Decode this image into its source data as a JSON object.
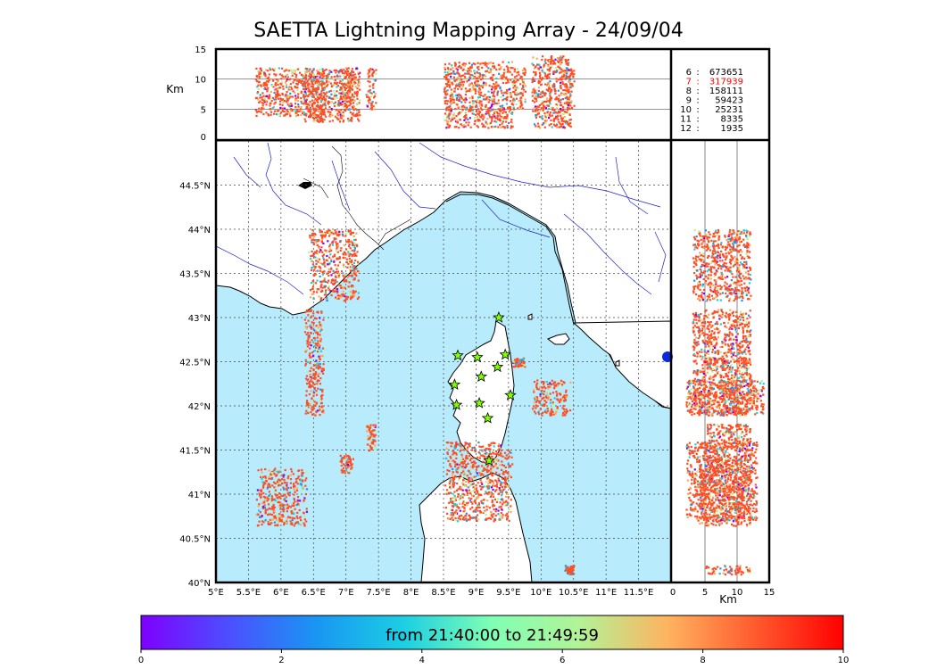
{
  "title": "SAETTA Lightning Mapping Array - 24/09/04",
  "colors": {
    "sea": "#b8ecfc",
    "land": "#ffffff",
    "rivers": "#2020d0",
    "borders": "#000000",
    "star_fill": "#7fff00",
    "highlight_stat": "#ff0000"
  },
  "altitude_panel": {
    "ylabel": "Km",
    "yticks": [
      "0",
      "5",
      "10",
      "15"
    ]
  },
  "side_panel": {
    "xlabel": "Km",
    "xticks": [
      "0",
      "5",
      "10",
      "15"
    ]
  },
  "map": {
    "lon_ticks": [
      "5°E",
      "5.5°E",
      "6°E",
      "6.5°E",
      "7°E",
      "7.5°E",
      "8°E",
      "8.5°E",
      "9°E",
      "9.5°E",
      "10°E",
      "10.5°E",
      "11°E",
      "11.5°E"
    ],
    "lat_ticks": [
      "40°N",
      "40.5°N",
      "41°N",
      "41.5°N",
      "42°N",
      "42.5°N",
      "43°N",
      "43.5°N",
      "44°N",
      "44.5°N"
    ],
    "grid": "dotted",
    "station_marker": "star-icon",
    "stations": [
      {
        "lon": 9.35,
        "lat": 43.0
      },
      {
        "lon": 8.72,
        "lat": 42.57
      },
      {
        "lon": 9.02,
        "lat": 42.55
      },
      {
        "lon": 9.45,
        "lat": 42.58
      },
      {
        "lon": 9.33,
        "lat": 42.44
      },
      {
        "lon": 9.08,
        "lat": 42.33
      },
      {
        "lon": 8.67,
        "lat": 42.24
      },
      {
        "lon": 9.53,
        "lat": 42.12
      },
      {
        "lon": 8.7,
        "lat": 42.01
      },
      {
        "lon": 9.05,
        "lat": 42.03
      },
      {
        "lon": 9.18,
        "lat": 41.86
      },
      {
        "lon": 9.2,
        "lat": 41.38
      }
    ]
  },
  "stats": [
    {
      "stations": "6",
      "sep": ":",
      "count": "673651",
      "highlight": false
    },
    {
      "stations": "7",
      "sep": ":",
      "count": "317939",
      "highlight": true
    },
    {
      "stations": "8",
      "sep": ":",
      "count": "158111",
      "highlight": false
    },
    {
      "stations": "9",
      "sep": ":",
      "count": "59423",
      "highlight": false
    },
    {
      "stations": "10",
      "sep": ":",
      "count": "25231",
      "highlight": false
    },
    {
      "stations": "11",
      "sep": ":",
      "count": "8335",
      "highlight": false
    },
    {
      "stations": "12",
      "sep": ":",
      "count": "1935",
      "highlight": false
    }
  ],
  "colorbar": {
    "label": "from 21:40:00 to 21:49:59",
    "ticks": [
      "0",
      "2",
      "4",
      "6",
      "8",
      "10"
    ],
    "min": 0,
    "max": 10,
    "colormap": "rainbow"
  },
  "chart_data": {
    "type": "scatter",
    "title": "SAETTA Lightning Mapping Array - 24/09/04",
    "xlabel": "",
    "ylabel": "",
    "xlim": [
      5.0,
      12.0
    ],
    "ylim": [
      40.0,
      45.0
    ],
    "altitude_range_km": [
      0,
      15
    ],
    "colorbar_range_minutes": [
      0,
      10
    ],
    "clusters": [
      {
        "lon": [
          6.4,
          7.2
        ],
        "lat": [
          43.2,
          44.0
        ],
        "alt_km": [
          3,
          12
        ],
        "dominant_time_min": 8
      },
      {
        "lon": [
          6.35,
          6.65
        ],
        "lat": [
          41.9,
          43.1
        ],
        "alt_km": [
          3,
          12
        ],
        "dominant_time_min": 9
      },
      {
        "lon": [
          7.3,
          7.45
        ],
        "lat": [
          41.5,
          41.8
        ],
        "alt_km": [
          5,
          12
        ],
        "dominant_time_min": 9
      },
      {
        "lon": [
          6.9,
          7.1
        ],
        "lat": [
          41.25,
          41.45
        ],
        "alt_km": [
          5,
          12
        ],
        "dominant_time_min": 9
      },
      {
        "lon": [
          5.6,
          6.4
        ],
        "lat": [
          40.65,
          41.3
        ],
        "alt_km": [
          4,
          12
        ],
        "dominant_time_min": 8
      },
      {
        "lon": [
          8.5,
          9.55
        ],
        "lat": [
          40.7,
          41.6
        ],
        "alt_km": [
          2,
          13
        ],
        "dominant_time_min": 9
      },
      {
        "lon": [
          9.85,
          10.45
        ],
        "lat": [
          41.9,
          42.3
        ],
        "alt_km": [
          2,
          14
        ],
        "dominant_time_min": 9
      },
      {
        "lon": [
          9.55,
          9.75
        ],
        "lat": [
          42.45,
          42.55
        ],
        "alt_km": [
          5,
          12
        ],
        "dominant_time_min": 9
      },
      {
        "lon": [
          10.35,
          10.5
        ],
        "lat": [
          40.1,
          40.2
        ],
        "alt_km": [
          5,
          12
        ],
        "dominant_time_min": 7
      }
    ]
  }
}
